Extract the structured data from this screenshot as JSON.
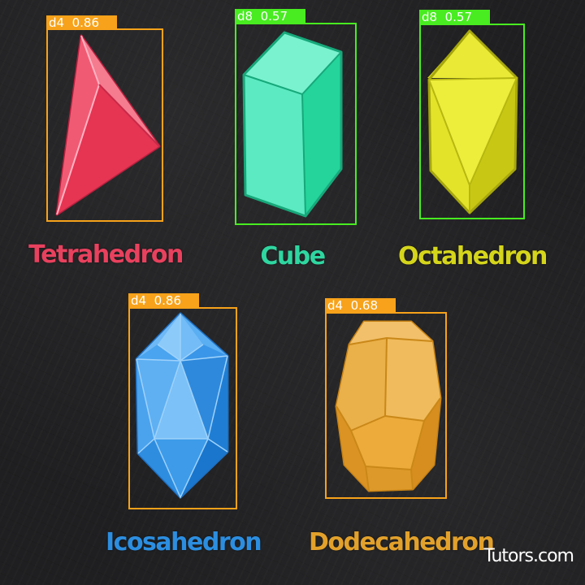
{
  "detections": [
    {
      "id": "tetrahedron",
      "tag": "d4  0.86",
      "color": "#f7a21a"
    },
    {
      "id": "cube",
      "tag": "d8  0.57",
      "color": "#48ec20"
    },
    {
      "id": "octahedron",
      "tag": "d8  0.57",
      "color": "#48ec20"
    },
    {
      "id": "icosahedron",
      "tag": "d4  0.86",
      "color": "#f7a21a"
    },
    {
      "id": "dodecahedron",
      "tag": "d4  0.68",
      "color": "#f7a21a"
    }
  ],
  "shapes": {
    "tetrahedron": {
      "label": "Tetrahedron",
      "color": "#e8415e"
    },
    "cube": {
      "label": "Cube",
      "color": "#2fd6a0"
    },
    "octahedron": {
      "label": "Octahedron",
      "color": "#d5d51c"
    },
    "icosahedron": {
      "label": "Icosahedron",
      "color": "#2c8ee0"
    },
    "dodecahedron": {
      "label": "Dodecahedron",
      "color": "#e2a12b"
    }
  },
  "brand": "Tutors.com"
}
